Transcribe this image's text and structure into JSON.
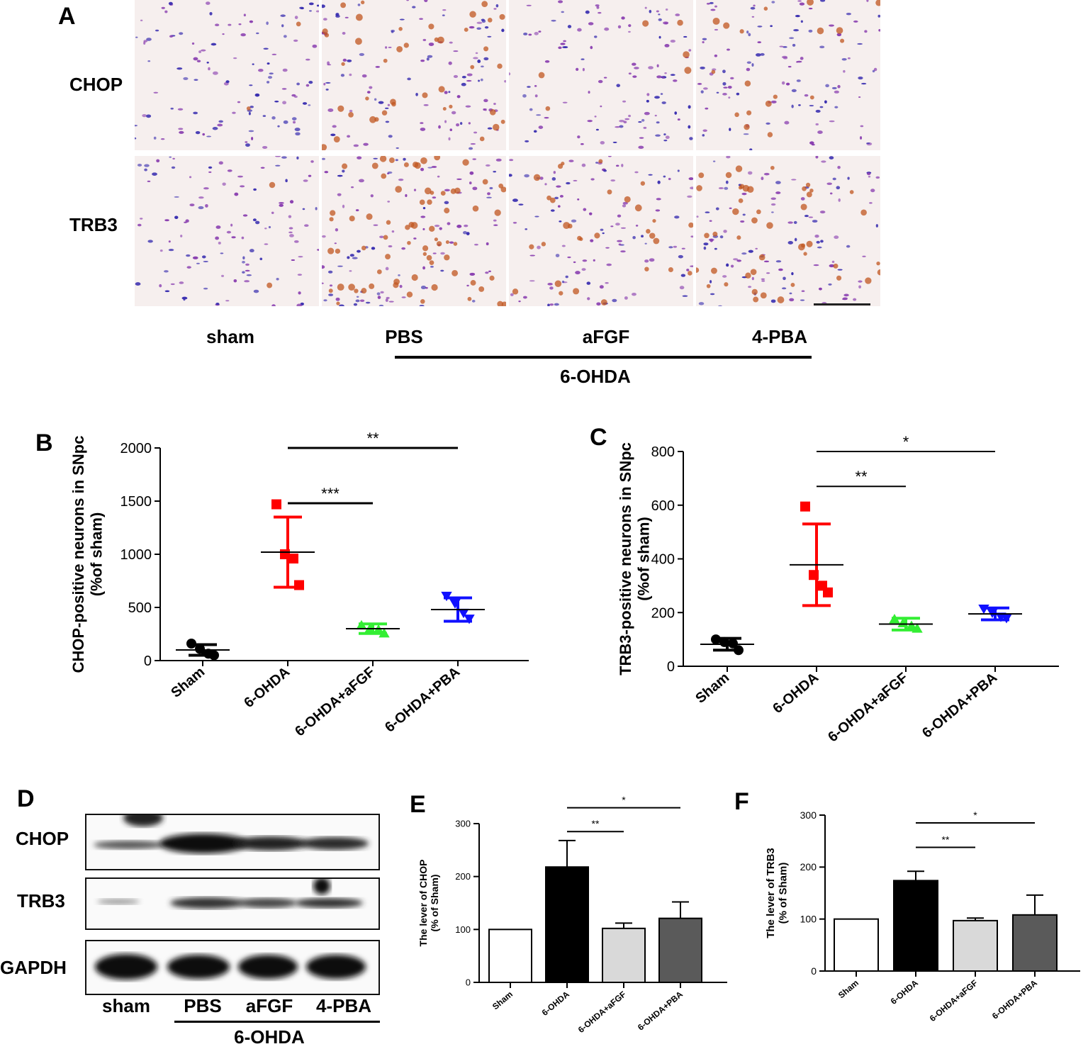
{
  "panels": {
    "A": "A",
    "B": "B",
    "C": "C",
    "D": "D",
    "E": "E",
    "F": "F"
  },
  "panelA": {
    "rows": [
      "CHOP",
      "TRB3"
    ],
    "columns": [
      "sham",
      "PBS",
      "aFGF",
      "4-PBA"
    ],
    "group": "6-OHDA",
    "colors": {
      "stain_purple": "#8a3fb0",
      "stain_brown": "#c0561f",
      "background": "#f6efee"
    }
  },
  "panelD": {
    "rows": [
      "CHOP",
      "TRB3",
      "GAPDH"
    ],
    "columns": [
      "sham",
      "PBS",
      "aFGF",
      "4-PBA"
    ],
    "group": "6-OHDA"
  },
  "chart_data": [
    {
      "id": "B",
      "type": "scatter",
      "ylabel": "CHOP-positive neurons in SNpc\n(%of sham)",
      "categories": [
        "Sham",
        "6-OHDA",
        "6-OHDA+aFGF",
        "6-OHDA+PBA"
      ],
      "yticks": [
        0,
        500,
        1000,
        1500,
        2000
      ],
      "ylim": [
        0,
        2000
      ],
      "colors": [
        "#000000",
        "#ff0000",
        "#33ee33",
        "#1010ff"
      ],
      "markers": [
        "circle",
        "square",
        "triangle-up",
        "triangle-down"
      ],
      "points": [
        [
          160,
          110,
          65,
          50
        ],
        [
          1470,
          1000,
          960,
          710
        ],
        [
          330,
          300,
          290,
          255
        ],
        [
          610,
          540,
          450,
          395
        ]
      ],
      "mean": [
        100,
        1020,
        300,
        480
      ],
      "sd": [
        50,
        330,
        45,
        110
      ],
      "sig": [
        {
          "from": 1,
          "to": 2,
          "label": "***",
          "y": 1480
        },
        {
          "from": 1,
          "to": 3,
          "label": "**",
          "y": 2000
        }
      ]
    },
    {
      "id": "C",
      "type": "scatter",
      "ylabel": "TRB3-positive neurons in SNpc\n(%of sham)",
      "categories": [
        "Sham",
        "6-OHDA",
        "6-OHDA+aFGF",
        "6-OHDA+PBA"
      ],
      "yticks": [
        0,
        200,
        400,
        600,
        800
      ],
      "ylim": [
        0,
        800
      ],
      "colors": [
        "#000000",
        "#ff0000",
        "#33ee33",
        "#1010ff"
      ],
      "markers": [
        "circle",
        "square",
        "triangle-up",
        "triangle-down"
      ],
      "points": [
        [
          100,
          90,
          85,
          60
        ],
        [
          595,
          340,
          300,
          275
        ],
        [
          175,
          160,
          150,
          140
        ],
        [
          215,
          200,
          185,
          180
        ]
      ],
      "mean": [
        82,
        378,
        157,
        195
      ],
      "sd": [
        22,
        152,
        22,
        22
      ],
      "sig": [
        {
          "from": 1,
          "to": 2,
          "label": "**",
          "y": 670
        },
        {
          "from": 1,
          "to": 3,
          "label": "*",
          "y": 800
        }
      ]
    },
    {
      "id": "E",
      "type": "bar",
      "ylabel": "The lever of CHOP\n(% of Sham)",
      "categories": [
        "Sham",
        "6-OHDA",
        "6-OHDA+aFGF",
        "6-OHDA+PBA"
      ],
      "yticks": [
        0,
        100,
        200,
        300
      ],
      "ylim": [
        0,
        300
      ],
      "values": [
        100,
        218,
        102,
        121
      ],
      "errors": [
        0,
        50,
        10,
        31
      ],
      "colors": [
        "#ffffff",
        "#000000",
        "#d9d9d9",
        "#5a5a5a"
      ],
      "sig": [
        {
          "from": 1,
          "to": 2,
          "label": "**",
          "y": 285
        },
        {
          "from": 1,
          "to": 3,
          "label": "*",
          "y": 330
        }
      ]
    },
    {
      "id": "F",
      "type": "bar",
      "ylabel": "The lever of TRB3\n(% of Sham)",
      "categories": [
        "Sham",
        "6-OHDA",
        "6-OHDA+aFGF",
        "6-OHDA+PBA"
      ],
      "yticks": [
        0,
        100,
        200,
        300
      ],
      "ylim": [
        0,
        300
      ],
      "values": [
        100,
        174,
        97,
        108
      ],
      "errors": [
        0,
        18,
        5,
        38
      ],
      "colors": [
        "#ffffff",
        "#000000",
        "#d9d9d9",
        "#5a5a5a"
      ],
      "sig": [
        {
          "from": 1,
          "to": 2,
          "label": "**",
          "y": 238
        },
        {
          "from": 1,
          "to": 3,
          "label": "*",
          "y": 285
        }
      ]
    }
  ]
}
